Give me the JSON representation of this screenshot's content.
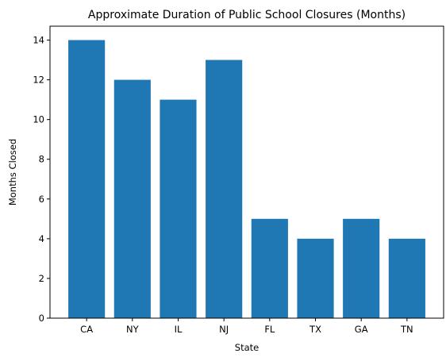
{
  "chart_data": {
    "type": "bar",
    "title": "Approximate Duration of Public School Closures (Months)",
    "xlabel": "State",
    "ylabel": "Months Closed",
    "categories": [
      "CA",
      "NY",
      "IL",
      "NJ",
      "FL",
      "TX",
      "GA",
      "TN"
    ],
    "values": [
      14,
      12,
      11,
      13,
      5,
      4,
      5,
      4
    ],
    "ylim": [
      0,
      14.7
    ],
    "yticks": [
      0,
      2,
      4,
      6,
      8,
      10,
      12,
      14
    ],
    "bar_color": "#1f77b4",
    "grid": false,
    "legend": "none"
  }
}
